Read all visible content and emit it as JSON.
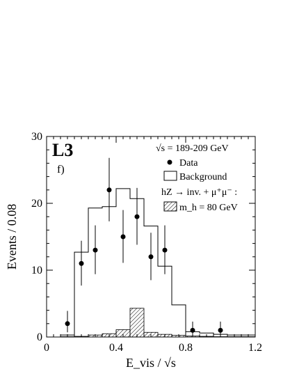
{
  "chart_data": {
    "type": "histogram",
    "experiment_label": "L3",
    "panel_label": "f)",
    "xlabel": "E_vis / √s",
    "ylabel": "Events / 0.08",
    "xlim": [
      0,
      1.2
    ],
    "ylim": [
      0,
      30
    ],
    "x_ticks": [
      "0",
      "0.4",
      "0.8",
      "1.2"
    ],
    "y_ticks": [
      "0",
      "10",
      "20",
      "30"
    ],
    "legend": {
      "energy": "√s = 189-209 GeV",
      "data": "Data",
      "background": "Background",
      "signal_process": "hZ → inv. + μ⁺μ⁻ :",
      "signal": "m_h = 80 GeV"
    },
    "bin_edges": [
      0.08,
      0.16,
      0.24,
      0.32,
      0.4,
      0.48,
      0.56,
      0.64,
      0.72,
      0.8,
      0.88,
      0.96,
      1.04,
      1.12,
      1.2
    ],
    "background": [
      0.3,
      12.7,
      19.3,
      19.5,
      22.2,
      20.7,
      16.6,
      10.6,
      4.8,
      0.8,
      0.6,
      0.4,
      0.3,
      0.3
    ],
    "signal": [
      0.05,
      0.1,
      0.3,
      0.5,
      1.1,
      4.3,
      0.7,
      0.4,
      0.25,
      0.15,
      0.1,
      0.05,
      0.05,
      0.05
    ],
    "data": [
      {
        "x": 0.12,
        "y": 2,
        "err": [
          1.3,
          1.9
        ]
      },
      {
        "x": 0.2,
        "y": 11,
        "err": [
          3.3,
          3.4
        ]
      },
      {
        "x": 0.28,
        "y": 13,
        "err": [
          3.6,
          3.7
        ]
      },
      {
        "x": 0.36,
        "y": 22,
        "err": [
          4.7,
          4.8
        ]
      },
      {
        "x": 0.44,
        "y": 15,
        "err": [
          3.9,
          4.0
        ]
      },
      {
        "x": 0.52,
        "y": 18,
        "err": [
          4.2,
          4.3
        ]
      },
      {
        "x": 0.6,
        "y": 12,
        "err": [
          3.5,
          3.6
        ]
      },
      {
        "x": 0.68,
        "y": 13,
        "err": [
          3.6,
          3.7
        ]
      },
      {
        "x": 0.84,
        "y": 1,
        "err": [
          0.8,
          1.3
        ]
      },
      {
        "x": 1.0,
        "y": 1,
        "err": [
          0.8,
          1.3
        ]
      }
    ]
  }
}
